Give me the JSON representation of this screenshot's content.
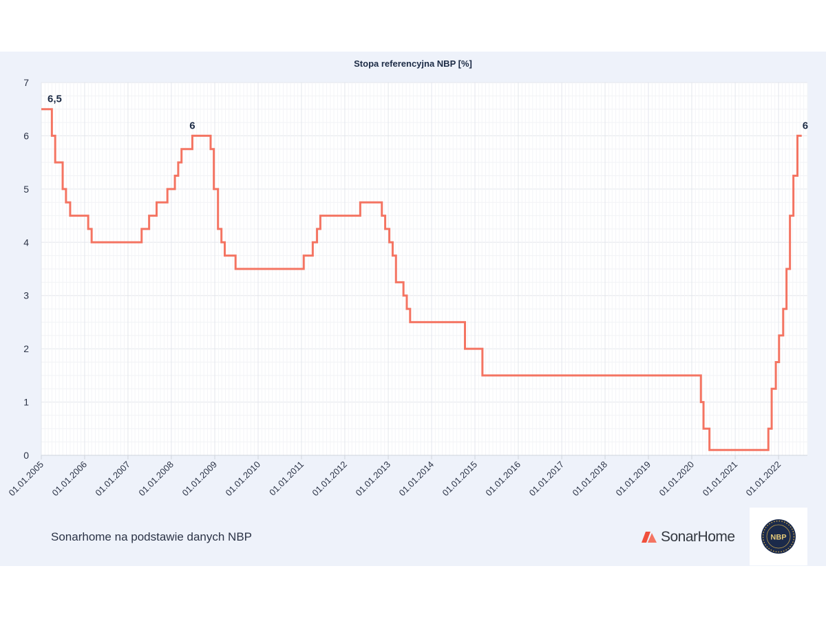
{
  "chart_data": {
    "type": "line",
    "step": true,
    "title": "Stopa referencyjna NBP [%]",
    "xlabel": "",
    "ylabel": "",
    "ylim": [
      0,
      7
    ],
    "y_ticks": [
      "0",
      "1",
      "2",
      "3",
      "4",
      "5",
      "6",
      "7"
    ],
    "x_ticks": [
      "01.01.2005",
      "01.01.2006",
      "01.01.2007",
      "01.01.2008",
      "01.01.2009",
      "01.01.2010",
      "01.01.2011",
      "01.01.2012",
      "01.01.2013",
      "01.01.2014",
      "01.01.2015",
      "01.01.2016",
      "01.01.2017",
      "01.01.2018",
      "01.01.2019",
      "01.01.2020",
      "01.01.2021",
      "01.01.2022"
    ],
    "xlim": [
      "2005-01-01",
      "2022-09-01"
    ],
    "grid": true,
    "line_color": "#f47462",
    "series": [
      {
        "points": [
          [
            "2005-01-01",
            6.5
          ],
          [
            "2005-03-31",
            6.0
          ],
          [
            "2005-04-28",
            5.5
          ],
          [
            "2005-06-30",
            5.0
          ],
          [
            "2005-07-28",
            4.75
          ],
          [
            "2005-09-01",
            4.5
          ],
          [
            "2006-01-31",
            4.25
          ],
          [
            "2006-03-01",
            4.0
          ],
          [
            "2007-04-26",
            4.25
          ],
          [
            "2007-06-28",
            4.5
          ],
          [
            "2007-08-30",
            4.75
          ],
          [
            "2007-11-29",
            5.0
          ],
          [
            "2008-01-31",
            5.25
          ],
          [
            "2008-02-28",
            5.5
          ],
          [
            "2008-03-27",
            5.75
          ],
          [
            "2008-06-26",
            6.0
          ],
          [
            "2008-11-27",
            5.75
          ],
          [
            "2008-12-24",
            5.0
          ],
          [
            "2009-01-28",
            4.25
          ],
          [
            "2009-02-26",
            4.0
          ],
          [
            "2009-03-26",
            3.75
          ],
          [
            "2009-06-25",
            3.5
          ],
          [
            "2011-01-20",
            3.75
          ],
          [
            "2011-04-06",
            4.0
          ],
          [
            "2011-05-12",
            4.25
          ],
          [
            "2011-06-09",
            4.5
          ],
          [
            "2012-05-10",
            4.75
          ],
          [
            "2012-11-08",
            4.5
          ],
          [
            "2012-12-06",
            4.25
          ],
          [
            "2013-01-10",
            4.0
          ],
          [
            "2013-02-07",
            3.75
          ],
          [
            "2013-03-07",
            3.25
          ],
          [
            "2013-05-09",
            3.0
          ],
          [
            "2013-06-06",
            2.75
          ],
          [
            "2013-07-04",
            2.5
          ],
          [
            "2014-10-09",
            2.0
          ],
          [
            "2015-03-05",
            1.5
          ],
          [
            "2020-03-18",
            1.0
          ],
          [
            "2020-04-09",
            0.5
          ],
          [
            "2020-05-29",
            0.1
          ],
          [
            "2021-10-07",
            0.5
          ],
          [
            "2021-11-04",
            1.25
          ],
          [
            "2021-12-09",
            1.75
          ],
          [
            "2022-01-05",
            2.25
          ],
          [
            "2022-02-09",
            2.75
          ],
          [
            "2022-03-09",
            3.5
          ],
          [
            "2022-04-07",
            4.5
          ],
          [
            "2022-05-06",
            5.25
          ],
          [
            "2022-06-09",
            6.0
          ],
          [
            "2022-07-15",
            6.0
          ]
        ]
      }
    ],
    "annotations": [
      {
        "x": "2005-01-01",
        "y": 6.5,
        "text": "6,5"
      },
      {
        "x": "2008-06-26",
        "y": 6.0,
        "text": "6"
      },
      {
        "x": "2022-07-15",
        "y": 6.0,
        "text": "6"
      }
    ]
  },
  "footer": {
    "source": "Sonarhome na podstawie danych NBP",
    "brand": "SonarHome",
    "seal_text": "NBP"
  }
}
